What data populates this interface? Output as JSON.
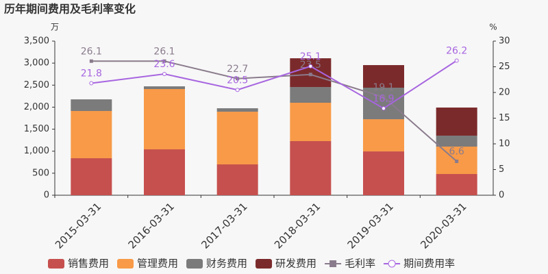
{
  "chart_data": {
    "type": "bar-line",
    "title": "历年期间费用及毛利率变化",
    "y_label": "万",
    "y2_label": "%",
    "categories": [
      "2015-03-31",
      "2016-03-31",
      "2017-03-31",
      "2018-03-31",
      "2019-03-31",
      "2020-03-31"
    ],
    "series": [
      {
        "name": "销售费用",
        "type": "bar",
        "color": "#c6504e",
        "values": [
          840,
          1042,
          700,
          1229,
          995,
          482
        ]
      },
      {
        "name": "管理费用",
        "type": "bar",
        "color": "#f89a48",
        "values": [
          1073,
          1369,
          1197,
          871,
          731,
          622
        ]
      },
      {
        "name": "财务费用",
        "type": "bar",
        "color": "#7b7b7b",
        "values": [
          264,
          62,
          78,
          357,
          716,
          249
        ]
      },
      {
        "name": "研发费用",
        "type": "bar",
        "color": "#7b2a2b",
        "values": [
          null,
          null,
          null,
          653,
          513,
          638
        ]
      },
      {
        "name": "毛利率",
        "type": "line",
        "axis": "y2",
        "marker": "square",
        "color": "#8a7b8c",
        "values": [
          26.1,
          26.1,
          22.7,
          23.5,
          19.1,
          6.6
        ]
      },
      {
        "name": "期间费用率",
        "type": "line",
        "axis": "y2",
        "marker": "circle",
        "color": "#a765e0",
        "values": [
          21.8,
          23.6,
          20.5,
          25.1,
          16.9,
          26.2
        ]
      }
    ],
    "ylim": [
      0,
      3500
    ],
    "yticks": [
      0,
      500,
      {
        "value": 1000,
        "label": "1,000"
      },
      {
        "value": 1500,
        "label": "1,500"
      },
      {
        "value": 2000,
        "label": "2,000"
      },
      {
        "value": 2500,
        "label": "2,500"
      },
      {
        "value": 3000,
        "label": "3,000"
      },
      {
        "value": 3500,
        "label": "3,500"
      }
    ],
    "y2lim": [
      0,
      30
    ],
    "y2ticks": [
      0,
      5,
      10,
      15,
      20,
      25,
      30
    ]
  }
}
